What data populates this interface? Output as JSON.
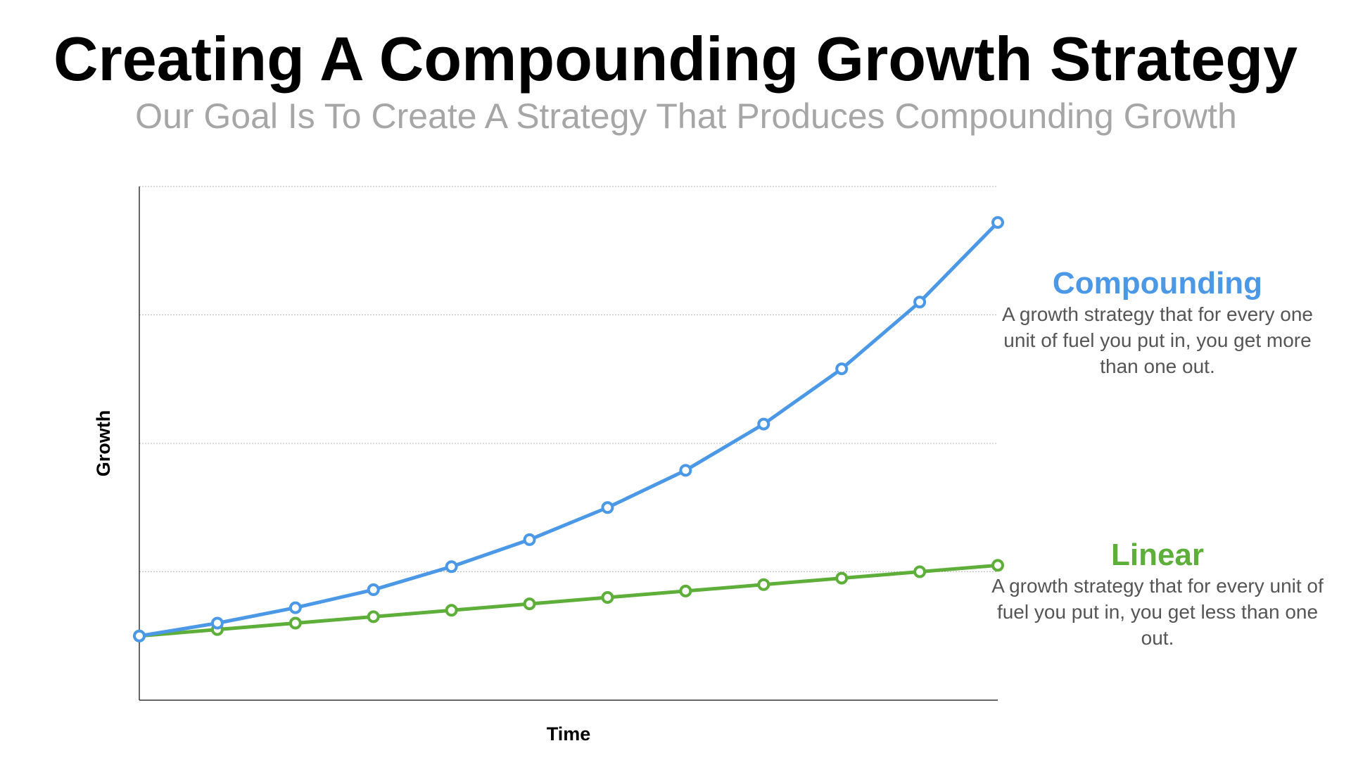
{
  "header": {
    "title": "Creating A Compounding Growth Strategy",
    "subtitle": "Our Goal Is To Create A Strategy That Produces Compounding Growth"
  },
  "chart_data": {
    "type": "line",
    "title": "Creating A Compounding Growth Strategy",
    "subtitle": "Our Goal Is To Create A Strategy That Produces Compounding Growth",
    "xlabel": "Time",
    "ylabel": "Growth",
    "x": [
      0,
      1,
      2,
      3,
      4,
      5,
      6,
      7,
      8,
      9,
      10,
      11
    ],
    "ylim": [
      0,
      4
    ],
    "xlim": [
      0,
      11
    ],
    "grid": true,
    "legend_position": "right",
    "series": [
      {
        "name": "Compounding",
        "color": "#4a98e6",
        "values": [
          0.5,
          0.6,
          0.72,
          0.86,
          1.04,
          1.25,
          1.5,
          1.79,
          2.15,
          2.58,
          3.1,
          3.72
        ],
        "description": "A growth strategy that for every one unit of fuel you put in, you get more than one out."
      },
      {
        "name": "Linear",
        "color": "#5eae3a",
        "values": [
          0.5,
          0.55,
          0.6,
          0.65,
          0.7,
          0.75,
          0.8,
          0.85,
          0.9,
          0.95,
          1.0,
          1.05
        ],
        "description": "A growth strategy that for every unit of fuel you put in, you get less than one out."
      }
    ]
  }
}
